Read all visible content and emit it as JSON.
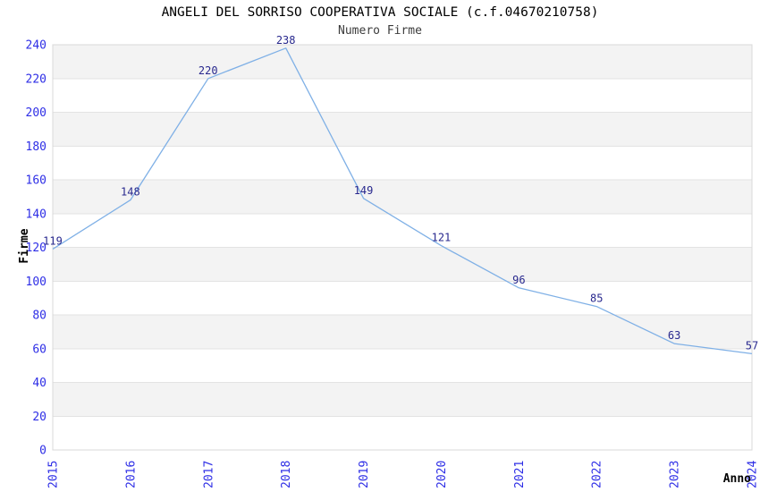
{
  "header": {
    "title": "ANGELI DEL SORRISO COOPERATIVA SOCIALE (c.f.04670210758)",
    "subtitle": "Numero Firme"
  },
  "chart_data": {
    "type": "line",
    "title": "ANGELI DEL SORRISO COOPERATIVA SOCIALE (c.f.04670210758)",
    "subtitle": "Numero Firme",
    "xlabel": "Anno",
    "ylabel": "Firme",
    "categories": [
      "2015",
      "2016",
      "2017",
      "2018",
      "2019",
      "2020",
      "2021",
      "2022",
      "2023",
      "2024"
    ],
    "series": [
      {
        "name": "Numero Firme",
        "values": [
          119,
          148,
          220,
          238,
          149,
          121,
          96,
          85,
          63,
          57
        ]
      }
    ],
    "data_labels": [
      "119",
      "148",
      "220",
      "238",
      "149",
      "121",
      "96",
      "85",
      "63",
      "57"
    ],
    "ylim": [
      0,
      240
    ],
    "ytick_step": 20,
    "yticks": [
      "0",
      "20",
      "40",
      "60",
      "80",
      "100",
      "120",
      "140",
      "160",
      "180",
      "200",
      "220",
      "240"
    ],
    "grid": "alternating-horizontal-bands",
    "legend_position": "none",
    "colors": {
      "line": "#7FB0E6",
      "band_fill": "#F3F3F3",
      "grid_line": "#E3E3E3",
      "plot_border": "#D8D8D8",
      "tick_label": "#2E2EE6",
      "data_label": "#28288E",
      "title": "#000000",
      "subtitle": "#3C3C3C",
      "axis_label": "#000000",
      "plot_background": "#FFFFFF"
    }
  }
}
